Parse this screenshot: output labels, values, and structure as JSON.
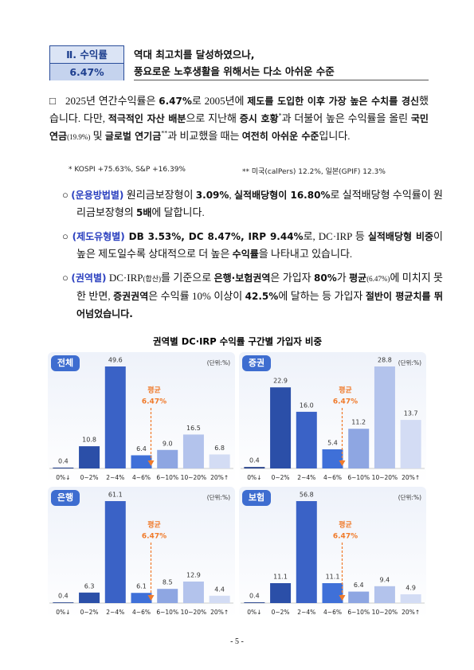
{
  "header": {
    "section": "Ⅱ. 수익률",
    "value": "6.47%",
    "title_lines": [
      "역대 최고치를 달성하였으나,",
      "풍요로운 노후생활을 위해서는 다소 아쉬운 수준"
    ]
  },
  "main_paragraph": {
    "marker": "□",
    "runs": [
      {
        "text": "2025년 연간수익률은 "
      },
      {
        "text": "6.47%",
        "style": "bold"
      },
      {
        "text": "로 2005년에 "
      },
      {
        "text": "제도를 도입한 이후 가장 높은 수치를 경신",
        "style": "bold"
      },
      {
        "text": "했습니다. 다만, "
      },
      {
        "text": "적극적인 자산 배분",
        "style": "bold"
      },
      {
        "text": "으로 지난해 "
      },
      {
        "text": "증시 호황",
        "style": "bold"
      },
      {
        "text": "*",
        "style": "sup"
      },
      {
        "text": "과 더불어 높은 수익률을 올린 "
      },
      {
        "text": "국민연금",
        "style": "bold"
      },
      {
        "text": "(19.9%)",
        "style": "small"
      },
      {
        "text": " 및 "
      },
      {
        "text": "글로벌 연기금",
        "style": "bold"
      },
      {
        "text": "**",
        "style": "sup"
      },
      {
        "text": "과 비교했을 때는 "
      },
      {
        "text": "여전히 아쉬운 수준",
        "style": "bold"
      },
      {
        "text": "입니다."
      }
    ]
  },
  "footnotes": [
    "* KOSPI +75.63%, S&P +16.39%",
    "** 미국(calPers) 12.2%, 일본(GPIF) 12.3%"
  ],
  "bullets": [
    {
      "marker": "○",
      "runs": [
        {
          "text": "(운용방법별)",
          "style": "blue"
        },
        {
          "text": " 원리금보장형이 "
        },
        {
          "text": "3.09%",
          "style": "bold"
        },
        {
          "text": ", "
        },
        {
          "text": "실적배당형이 16.80%",
          "style": "bold"
        },
        {
          "text": "로 실적배당형 수익률이 원리금보장형의 "
        },
        {
          "text": "5배",
          "style": "bold"
        },
        {
          "text": "에 달합니다."
        }
      ]
    },
    {
      "marker": "○",
      "runs": [
        {
          "text": "(제도유형별)",
          "style": "blue"
        },
        {
          "text": " DB 3.53%, DC 8.47%, IRP 9.44%",
          "style": "bold"
        },
        {
          "text": "로, DC·IRP 등 "
        },
        {
          "text": "실적배당형 비중",
          "style": "bold"
        },
        {
          "text": "이 높은 제도일수록 상대적으로 더 높은 "
        },
        {
          "text": "수익률",
          "style": "bold"
        },
        {
          "text": "을 나타내고 있습니다."
        }
      ]
    },
    {
      "marker": "○",
      "runs": [
        {
          "text": "(권역별)",
          "style": "blue"
        },
        {
          "text": " DC·IRP"
        },
        {
          "text": "(합산)",
          "style": "small"
        },
        {
          "text": "를 기준으로 "
        },
        {
          "text": "은행·보험권역",
          "style": "bold"
        },
        {
          "text": "은 가입자 "
        },
        {
          "text": "80%",
          "style": "bold"
        },
        {
          "text": "가 "
        },
        {
          "text": "평균",
          "style": "bold"
        },
        {
          "text": "(6.47%)",
          "style": "small"
        },
        {
          "text": "에 미치지 못한 반면, "
        },
        {
          "text": "증권권역",
          "style": "bold"
        },
        {
          "text": "은 수익률 10% 이상이 "
        },
        {
          "text": "42.5%",
          "style": "bold"
        },
        {
          "text": "에 달하는 등 가입자 "
        },
        {
          "text": "절반이 평균치를 뛰어넘었습니다.",
          "style": "bold"
        }
      ]
    }
  ],
  "chart_group_title": "권역별 DC·IRP 수익률 구간별 가입자 비중",
  "chart_data": [
    {
      "type": "bar",
      "title": "전체",
      "unit": "(단위:%)",
      "categories": [
        "0%↓",
        "0~2%",
        "2~4%",
        "4~6%",
        "6~10%",
        "10~20%",
        "20%↑"
      ],
      "values": [
        0.4,
        10.8,
        49.6,
        6.4,
        9.0,
        16.5,
        6.8
      ],
      "value_labels": [
        "0.4",
        "10.8",
        "49.6",
        "6.4",
        "9.0",
        "16.5",
        "6.8"
      ],
      "colors": [
        "#1d3a86",
        "#2b4fa8",
        "#3a62c6",
        "#3f70d8",
        "#8ea6e2",
        "#b3c3ec",
        "#d3dcf4"
      ],
      "annotation": [
        "평균",
        "6.47%"
      ]
    },
    {
      "type": "bar",
      "title": "증권",
      "unit": "(단위:%)",
      "categories": [
        "0%↓",
        "0~2%",
        "2~4%",
        "4~6%",
        "6~10%",
        "10~20%",
        "20%↑"
      ],
      "values": [
        0.4,
        22.9,
        16.0,
        5.4,
        11.2,
        28.8,
        13.7
      ],
      "value_labels": [
        "0.4",
        "22.9",
        "16.0",
        "5.4",
        "11.2",
        "28.8",
        "13.7"
      ],
      "colors": [
        "#1d3a86",
        "#2b4fa8",
        "#3a62c6",
        "#3f70d8",
        "#8ea6e2",
        "#b3c3ec",
        "#d3dcf4"
      ],
      "annotation": [
        "평균",
        "6.47%"
      ]
    },
    {
      "type": "bar",
      "title": "은행",
      "unit": "(단위:%)",
      "categories": [
        "0%↓",
        "0~2%",
        "2~4%",
        "4~6%",
        "6~10%",
        "10~20%",
        "20%↑"
      ],
      "values": [
        0.4,
        6.3,
        61.1,
        6.1,
        8.5,
        12.9,
        4.4
      ],
      "value_labels": [
        "0.4",
        "6.3",
        "61.1",
        "6.1",
        "8.5",
        "12.9",
        "4.4"
      ],
      "colors": [
        "#1d3a86",
        "#2b4fa8",
        "#3a62c6",
        "#3f70d8",
        "#8ea6e2",
        "#b3c3ec",
        "#d3dcf4"
      ],
      "annotation": [
        "평균",
        "6.47%"
      ]
    },
    {
      "type": "bar",
      "title": "보험",
      "unit": "(단위:%)",
      "categories": [
        "0%↓",
        "0~2%",
        "2~4%",
        "4~6%",
        "6~10%",
        "10~20%",
        "20%↑"
      ],
      "values": [
        0.4,
        11.1,
        56.8,
        11.1,
        6.4,
        9.4,
        4.9
      ],
      "value_labels": [
        "0.4",
        "11.1",
        "56.8",
        "11.1",
        "6.4",
        "9.4",
        "4.9"
      ],
      "colors": [
        "#1d3a86",
        "#2b4fa8",
        "#3a62c6",
        "#3f70d8",
        "#8ea6e2",
        "#b3c3ec",
        "#d3dcf4"
      ],
      "annotation": [
        "평균",
        "6.47%"
      ]
    }
  ],
  "page_number": "- 5 -"
}
